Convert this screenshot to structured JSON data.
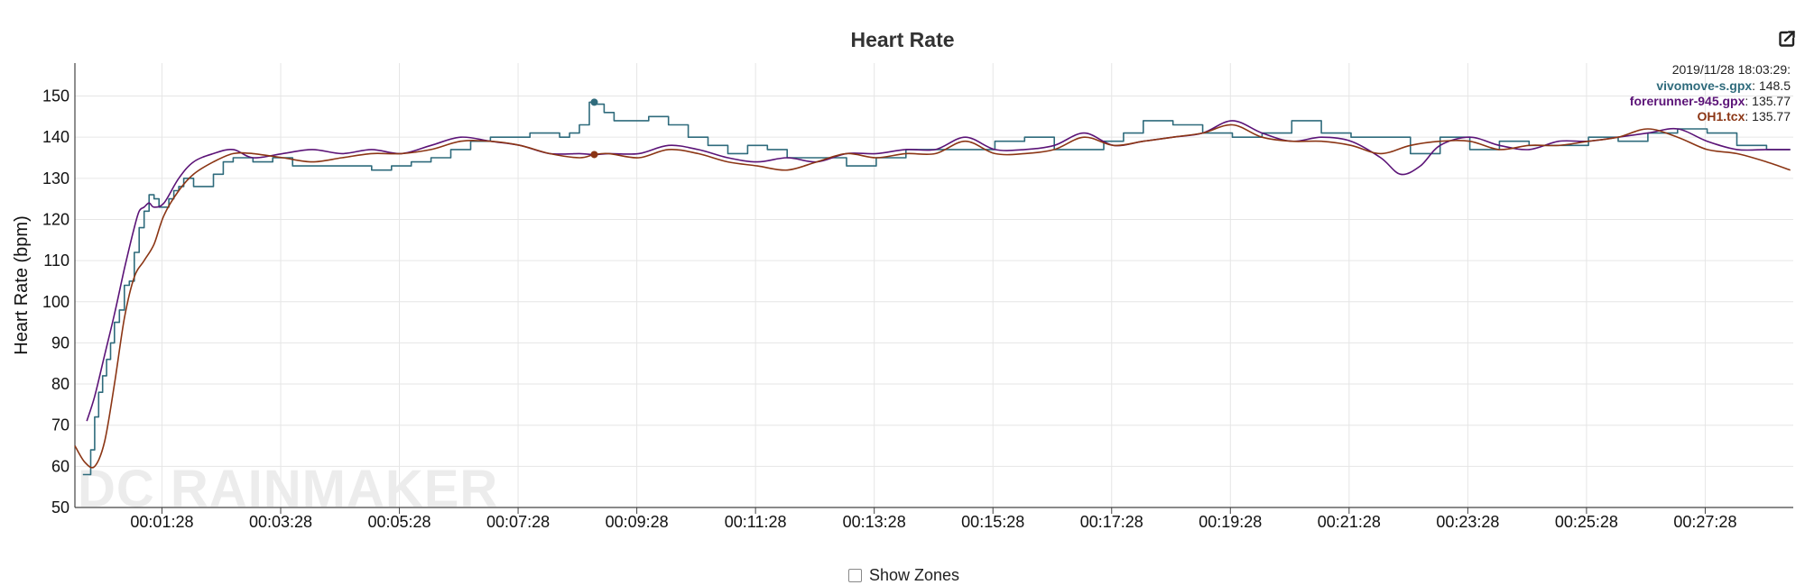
{
  "colors": {
    "vivomove": "#2f6b7c",
    "forerunner": "#5b1377",
    "oh1": "#8b3514",
    "grid": "#e6e6e6",
    "axis": "#444444"
  },
  "controls": {
    "export_icon": "edit-external-icon",
    "show_zones_label": "Show Zones"
  },
  "watermark": "DC RAINMAKER",
  "chart_data": {
    "type": "line",
    "title": "Heart Rate",
    "xlabel": "",
    "ylabel": "Heart Rate (bpm)",
    "ylim": [
      50,
      158
    ],
    "yticks": [
      50,
      60,
      70,
      80,
      90,
      100,
      110,
      120,
      130,
      140,
      150
    ],
    "xlim_seconds": [
      0,
      1737
    ],
    "xticks": [
      "00:01:28",
      "00:03:28",
      "00:05:28",
      "00:07:28",
      "00:09:28",
      "00:11:28",
      "00:13:28",
      "00:15:28",
      "00:17:28",
      "00:19:28",
      "00:21:28",
      "00:23:28",
      "00:25:28",
      "00:27:28"
    ],
    "grid": true,
    "legend_position": "top-right",
    "tooltip": {
      "timestamp": "2019/11/28 18:03:29:",
      "x": "00:08:45",
      "entries": [
        {
          "name": "vivomove-s.gpx",
          "value": "148.5"
        },
        {
          "name": "forerunner-945.gpx",
          "value": "135.77"
        },
        {
          "name": "OH1.tcx",
          "value": "135.77"
        }
      ]
    },
    "series": [
      {
        "name": "vivomove-s.gpx",
        "style": "step",
        "x": [
          "00:00:08",
          "00:00:12",
          "00:00:16",
          "00:00:20",
          "00:00:24",
          "00:00:28",
          "00:00:32",
          "00:00:36",
          "00:00:40",
          "00:00:45",
          "00:00:50",
          "00:00:55",
          "00:01:00",
          "00:01:05",
          "00:01:10",
          "00:01:15",
          "00:01:20",
          "00:01:25",
          "00:01:30",
          "00:01:35",
          "00:01:40",
          "00:01:45",
          "00:01:50",
          "00:02:00",
          "00:02:10",
          "00:02:20",
          "00:02:30",
          "00:02:40",
          "00:02:50",
          "00:03:00",
          "00:03:10",
          "00:03:20",
          "00:03:40",
          "00:04:00",
          "00:04:20",
          "00:04:40",
          "00:05:00",
          "00:05:20",
          "00:05:40",
          "00:06:00",
          "00:06:20",
          "00:06:40",
          "00:07:00",
          "00:07:20",
          "00:07:40",
          "00:08:00",
          "00:08:10",
          "00:08:20",
          "00:08:30",
          "00:08:40",
          "00:08:45",
          "00:08:55",
          "00:09:05",
          "00:09:20",
          "00:09:40",
          "00:10:00",
          "00:10:20",
          "00:10:40",
          "00:11:00",
          "00:11:20",
          "00:11:40",
          "00:12:00",
          "00:12:30",
          "00:13:00",
          "00:13:30",
          "00:14:00",
          "00:14:30",
          "00:15:00",
          "00:15:30",
          "00:16:00",
          "00:16:30",
          "00:17:00",
          "00:17:20",
          "00:17:40",
          "00:18:00",
          "00:18:30",
          "00:19:00",
          "00:19:30",
          "00:20:00",
          "00:20:30",
          "00:21:00",
          "00:21:30",
          "00:22:00",
          "00:22:30",
          "00:23:00",
          "00:23:30",
          "00:24:00",
          "00:24:30",
          "00:25:00",
          "00:25:30",
          "00:26:00",
          "00:26:30",
          "00:27:00",
          "00:27:30",
          "00:28:00",
          "00:28:30",
          "00:28:54"
        ],
        "values": [
          58,
          58,
          64,
          72,
          78,
          82,
          86,
          90,
          95,
          98,
          104,
          105,
          112,
          118,
          122,
          126,
          125,
          123,
          123,
          125,
          127,
          128,
          130,
          128,
          128,
          131,
          134,
          135,
          135,
          134,
          134,
          135,
          133,
          133,
          133,
          133,
          132,
          133,
          134,
          135,
          137,
          139,
          140,
          140,
          141,
          141,
          140,
          141,
          143,
          148.5,
          148,
          146,
          144,
          144,
          145,
          143,
          140,
          138,
          136,
          138,
          137,
          135,
          135,
          133,
          135,
          137,
          137,
          137,
          139,
          140,
          137,
          137,
          139,
          141,
          144,
          143,
          141,
          140,
          141,
          144,
          141,
          140,
          140,
          136,
          140,
          137,
          139,
          138,
          138,
          140,
          139,
          141,
          142,
          141,
          138,
          137,
          137
        ]
      },
      {
        "name": "forerunner-945.gpx",
        "style": "smooth",
        "x": [
          "00:00:12",
          "00:00:20",
          "00:00:30",
          "00:00:40",
          "00:00:50",
          "00:01:00",
          "00:01:05",
          "00:01:10",
          "00:01:15",
          "00:01:20",
          "00:01:30",
          "00:01:45",
          "00:02:00",
          "00:02:20",
          "00:02:40",
          "00:03:00",
          "00:03:30",
          "00:04:00",
          "00:04:30",
          "00:05:00",
          "00:05:30",
          "00:06:00",
          "00:06:30",
          "00:07:00",
          "00:07:30",
          "00:08:00",
          "00:08:30",
          "00:08:45",
          "00:09:00",
          "00:09:30",
          "00:10:00",
          "00:10:30",
          "00:11:00",
          "00:11:30",
          "00:12:00",
          "00:12:30",
          "00:13:00",
          "00:13:30",
          "00:14:00",
          "00:14:30",
          "00:15:00",
          "00:15:30",
          "00:16:00",
          "00:16:30",
          "00:17:00",
          "00:17:30",
          "00:18:00",
          "00:18:30",
          "00:19:00",
          "00:19:30",
          "00:20:00",
          "00:20:30",
          "00:21:00",
          "00:21:30",
          "00:22:00",
          "00:22:20",
          "00:22:40",
          "00:23:00",
          "00:23:30",
          "00:24:00",
          "00:24:30",
          "00:25:00",
          "00:25:30",
          "00:26:00",
          "00:26:30",
          "00:27:00",
          "00:27:30",
          "00:28:00",
          "00:28:30",
          "00:28:54"
        ],
        "values": [
          71,
          77,
          87,
          97,
          108,
          118,
          122,
          123,
          124,
          123,
          124,
          130,
          134,
          136,
          137,
          135,
          136,
          137,
          136,
          137,
          136,
          138,
          140,
          139,
          138,
          136,
          136,
          135.77,
          136,
          136,
          138,
          137,
          135,
          134,
          135,
          134,
          136,
          136,
          137,
          137,
          140,
          137,
          137,
          138,
          141,
          138,
          139,
          140,
          141,
          144,
          141,
          139,
          140,
          139,
          135,
          131,
          133,
          138,
          140,
          138,
          137,
          139,
          139,
          140,
          141,
          142,
          139,
          137,
          137,
          137
        ]
      },
      {
        "name": "OH1.tcx",
        "style": "smooth",
        "x": [
          "00:00:00",
          "00:00:10",
          "00:00:20",
          "00:00:30",
          "00:00:40",
          "00:00:50",
          "00:01:00",
          "00:01:10",
          "00:01:20",
          "00:01:30",
          "00:01:45",
          "00:02:00",
          "00:02:20",
          "00:02:40",
          "00:03:00",
          "00:03:30",
          "00:04:00",
          "00:04:30",
          "00:05:00",
          "00:05:30",
          "00:06:00",
          "00:06:30",
          "00:07:00",
          "00:07:30",
          "00:08:00",
          "00:08:30",
          "00:08:45",
          "00:09:00",
          "00:09:30",
          "00:10:00",
          "00:10:30",
          "00:11:00",
          "00:11:30",
          "00:12:00",
          "00:12:30",
          "00:13:00",
          "00:13:30",
          "00:14:00",
          "00:14:30",
          "00:15:00",
          "00:15:30",
          "00:16:00",
          "00:16:30",
          "00:17:00",
          "00:17:30",
          "00:18:00",
          "00:18:30",
          "00:19:00",
          "00:19:30",
          "00:20:00",
          "00:20:30",
          "00:21:00",
          "00:21:30",
          "00:22:00",
          "00:22:30",
          "00:23:00",
          "00:23:30",
          "00:24:00",
          "00:24:30",
          "00:25:00",
          "00:25:30",
          "00:26:00",
          "00:26:30",
          "00:27:00",
          "00:27:30",
          "00:28:00",
          "00:28:30",
          "00:28:54"
        ],
        "values": [
          65,
          61,
          60,
          66,
          80,
          96,
          106,
          110,
          114,
          121,
          127,
          131,
          134,
          136,
          136,
          135,
          134,
          135,
          136,
          136,
          137,
          139,
          139,
          138,
          136,
          135,
          135.77,
          136,
          135,
          137,
          136,
          134,
          133,
          132,
          134,
          136,
          135,
          136,
          136,
          139,
          136,
          136,
          137,
          140,
          138,
          139,
          140,
          141,
          143,
          140,
          139,
          139,
          138,
          136,
          138,
          139,
          139,
          137,
          138,
          138,
          139,
          140,
          142,
          140,
          137,
          136,
          134,
          132
        ]
      }
    ]
  }
}
